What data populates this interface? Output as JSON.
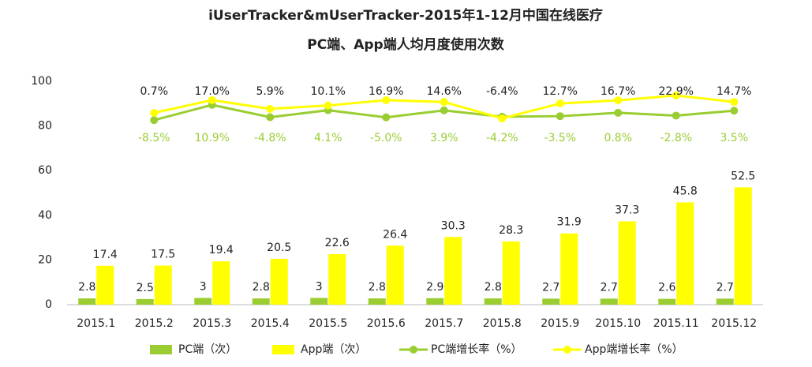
{
  "chart_data": {
    "type": "bar",
    "title": [
      "iUserTracker&mUserTracker-2015年1-12月中国在线医疗",
      "PC端、App端人均月度使用次数"
    ],
    "categories": [
      "2015.1",
      "2015.2",
      "2015.3",
      "2015.4",
      "2015.5",
      "2015.6",
      "2015.7",
      "2015.8",
      "2015.9",
      "2015.10",
      "2015.11",
      "2015.12"
    ],
    "ylim": [
      0,
      100
    ],
    "yticks": [
      0,
      20,
      40,
      60,
      80,
      100
    ],
    "y2lim": [
      -244,
      41
    ],
    "grid": false,
    "legend": "bottom",
    "series": [
      {
        "name": "PC端（次）",
        "type": "bar",
        "color": "#9acd32",
        "values": [
          2.8,
          2.5,
          3.0,
          2.8,
          3.0,
          2.8,
          2.9,
          2.8,
          2.7,
          2.7,
          2.6,
          2.7
        ]
      },
      {
        "name": "App端（次）",
        "type": "bar",
        "color": "#ffff00",
        "values": [
          17.4,
          17.5,
          19.4,
          20.5,
          22.6,
          26.4,
          30.3,
          28.3,
          31.9,
          37.3,
          45.8,
          52.5
        ]
      },
      {
        "name": "PC端增长率（%）",
        "type": "line",
        "axis": "y2",
        "color": "#9acd32",
        "label_color": "#9acd32",
        "values": [
          null,
          -8.5,
          10.9,
          -4.8,
          4.1,
          -5.0,
          3.9,
          -4.2,
          -3.5,
          0.8,
          -2.8,
          3.5
        ],
        "value_labels": [
          null,
          "-8.5%",
          "10.9%",
          "-4.8%",
          "4.1%",
          "-5.0%",
          "3.9%",
          "-4.2%",
          "-3.5%",
          "0.8%",
          "-2.8%",
          "3.5%"
        ]
      },
      {
        "name": "App端增长率（%）",
        "type": "line",
        "axis": "y2",
        "color": "#ffff00",
        "label_color": "#222222",
        "values": [
          null,
          0.7,
          17.0,
          5.9,
          10.1,
          16.9,
          14.6,
          -6.4,
          12.7,
          16.7,
          22.9,
          14.7
        ],
        "value_labels": [
          null,
          "0.7%",
          "17.0%",
          "5.9%",
          "10.1%",
          "16.9%",
          "14.6%",
          "-6.4%",
          "12.7%",
          "16.7%",
          "22.9%",
          "14.7%"
        ]
      }
    ]
  }
}
